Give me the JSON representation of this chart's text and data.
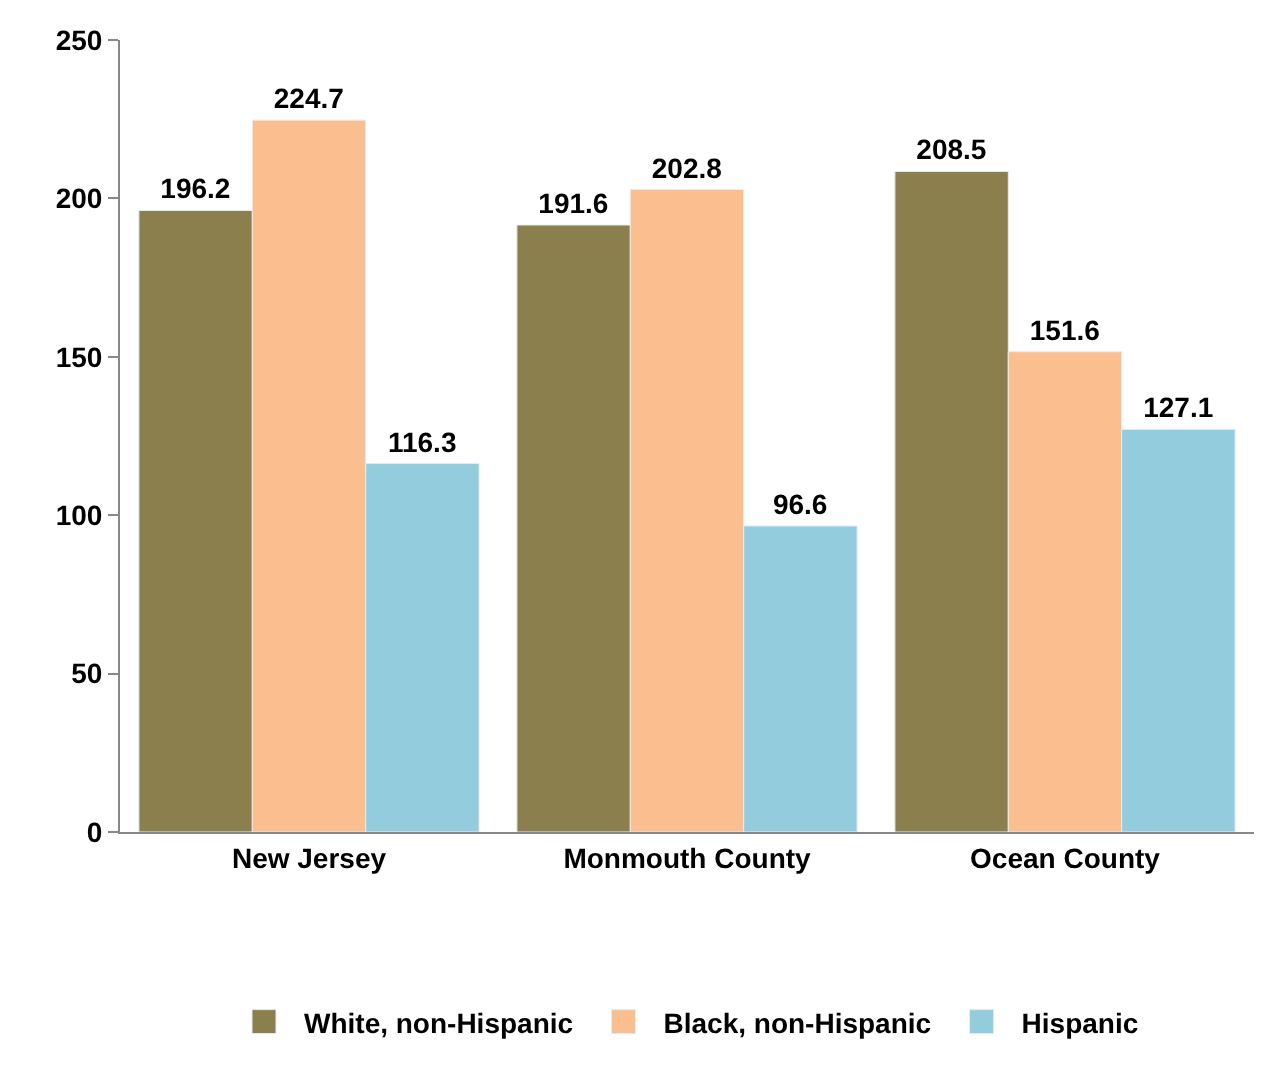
{
  "chart_data": {
    "type": "bar",
    "categories": [
      "New Jersey",
      "Monmouth County",
      "Ocean County"
    ],
    "series": [
      {
        "name": "White, non-Hispanic",
        "color": "#8c7f4e",
        "values": [
          196.2,
          191.6,
          208.5
        ]
      },
      {
        "name": "Black, non-Hispanic",
        "color": "#fbbe8e",
        "values": [
          224.7,
          202.8,
          151.6
        ]
      },
      {
        "name": "Hispanic",
        "color": "#93cddd",
        "values": [
          116.3,
          96.6,
          127.1
        ]
      }
    ],
    "ylim": [
      0,
      250
    ],
    "yticks": [
      0,
      50,
      100,
      150,
      200,
      250
    ],
    "legend": "bottom",
    "data_labels": true
  }
}
